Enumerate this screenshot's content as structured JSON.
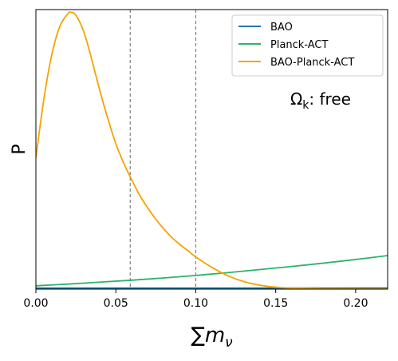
{
  "chart_data": {
    "type": "line",
    "title": "",
    "xlabel_main": "∑m",
    "xlabel_sub": "ν",
    "ylabel": "P",
    "xlim": [
      0.0,
      0.22
    ],
    "ylim": [
      0.0,
      1.0
    ],
    "x_ticks": [
      "0.00",
      "0.05",
      "0.10",
      "0.15",
      "0.20"
    ],
    "x_tick_values": [
      0.0,
      0.05,
      0.1,
      0.15,
      0.2
    ],
    "y_ticks_shown": false,
    "grid": false,
    "legend_position": "top-right",
    "annotation_main": "Ω",
    "annotation_sub": "k",
    "annotation_rest": ": free",
    "vlines": [
      0.059,
      0.1
    ],
    "vline_color": "#808080",
    "series": [
      {
        "name": "BAO",
        "color": "#1f77b4",
        "x": [
          0.0,
          0.05,
          0.1,
          0.15,
          0.2,
          0.22
        ],
        "y": [
          0.004,
          0.004,
          0.004,
          0.004,
          0.004,
          0.004
        ]
      },
      {
        "name": "Planck-ACT",
        "color": "#2db36a",
        "x": [
          0.0,
          0.02,
          0.04,
          0.06,
          0.08,
          0.1,
          0.12,
          0.14,
          0.16,
          0.18,
          0.2,
          0.22
        ],
        "y": [
          0.012,
          0.018,
          0.025,
          0.032,
          0.04,
          0.049,
          0.059,
          0.07,
          0.081,
          0.093,
          0.106,
          0.12
        ]
      },
      {
        "name": "BAO-Planck-ACT",
        "color": "#f5a300",
        "x": [
          0.0,
          0.005,
          0.01,
          0.015,
          0.02,
          0.022,
          0.025,
          0.03,
          0.035,
          0.04,
          0.045,
          0.05,
          0.055,
          0.06,
          0.065,
          0.07,
          0.075,
          0.08,
          0.085,
          0.09,
          0.095,
          0.1,
          0.11,
          0.12,
          0.13,
          0.14,
          0.15,
          0.16,
          0.18,
          0.2,
          0.22
        ],
        "y": [
          0.47,
          0.68,
          0.84,
          0.94,
          0.985,
          0.99,
          0.98,
          0.92,
          0.82,
          0.71,
          0.61,
          0.52,
          0.45,
          0.39,
          0.335,
          0.29,
          0.25,
          0.215,
          0.185,
          0.16,
          0.138,
          0.115,
          0.078,
          0.048,
          0.027,
          0.014,
          0.007,
          0.004,
          0.0015,
          0.0005,
          0.0002
        ]
      }
    ]
  }
}
